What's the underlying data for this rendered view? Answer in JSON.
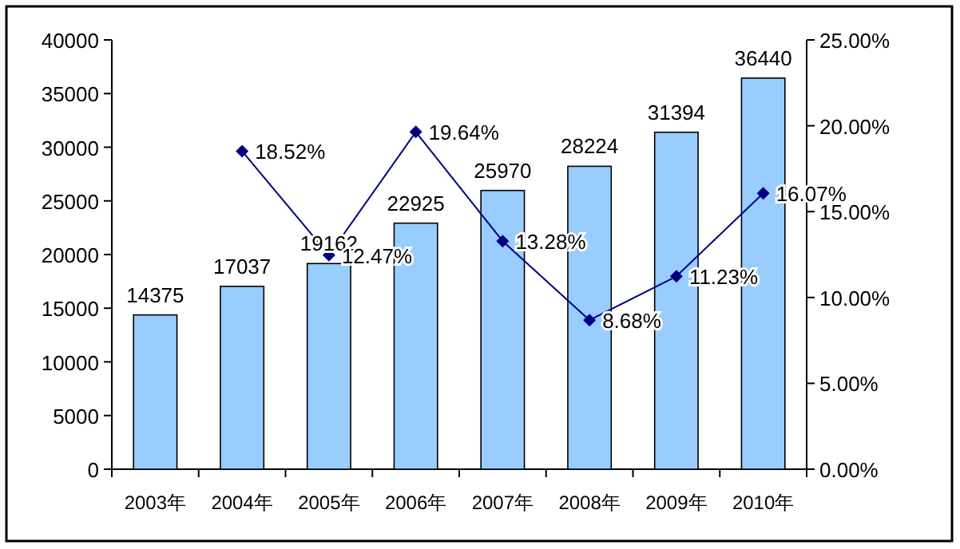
{
  "chart_data": {
    "type": "bar",
    "categories": [
      "2003年",
      "2004年",
      "2005年",
      "2006年",
      "2007年",
      "2008年",
      "2009年",
      "2010年"
    ],
    "series": [
      {
        "color": "#99ccff",
        "values": [
          14375,
          17037,
          19162,
          22925,
          25970,
          28224,
          31394,
          36440
        ],
        "value_labels": [
          "14375",
          "17037",
          "19162",
          "22925",
          "25970",
          "28224",
          "31394",
          "36440"
        ]
      },
      {
        "type": "line",
        "axis": "y2",
        "color": "#000080",
        "marker": "diamond",
        "values": [
          null,
          18.52,
          12.47,
          19.64,
          13.28,
          8.68,
          11.23,
          16.07
        ],
        "value_labels": [
          null,
          "18.52%",
          "12.47%",
          "19.64%",
          "13.28%",
          "8.68%",
          "11.23%",
          "16.07%"
        ]
      }
    ],
    "ylim": [
      0,
      40000
    ],
    "yticks": [
      0,
      5000,
      10000,
      15000,
      20000,
      25000,
      30000,
      35000,
      40000
    ],
    "y2lim": [
      0,
      25
    ],
    "y2ticks": [
      {
        "value": 0,
        "label": "0.00%"
      },
      {
        "value": 5,
        "label": "5.00%"
      },
      {
        "value": 10,
        "label": "10.00%"
      },
      {
        "value": 15,
        "label": "15.00%"
      },
      {
        "value": 20,
        "label": "20.00%"
      },
      {
        "value": 25,
        "label": "25.00%"
      }
    ],
    "grid": false
  }
}
